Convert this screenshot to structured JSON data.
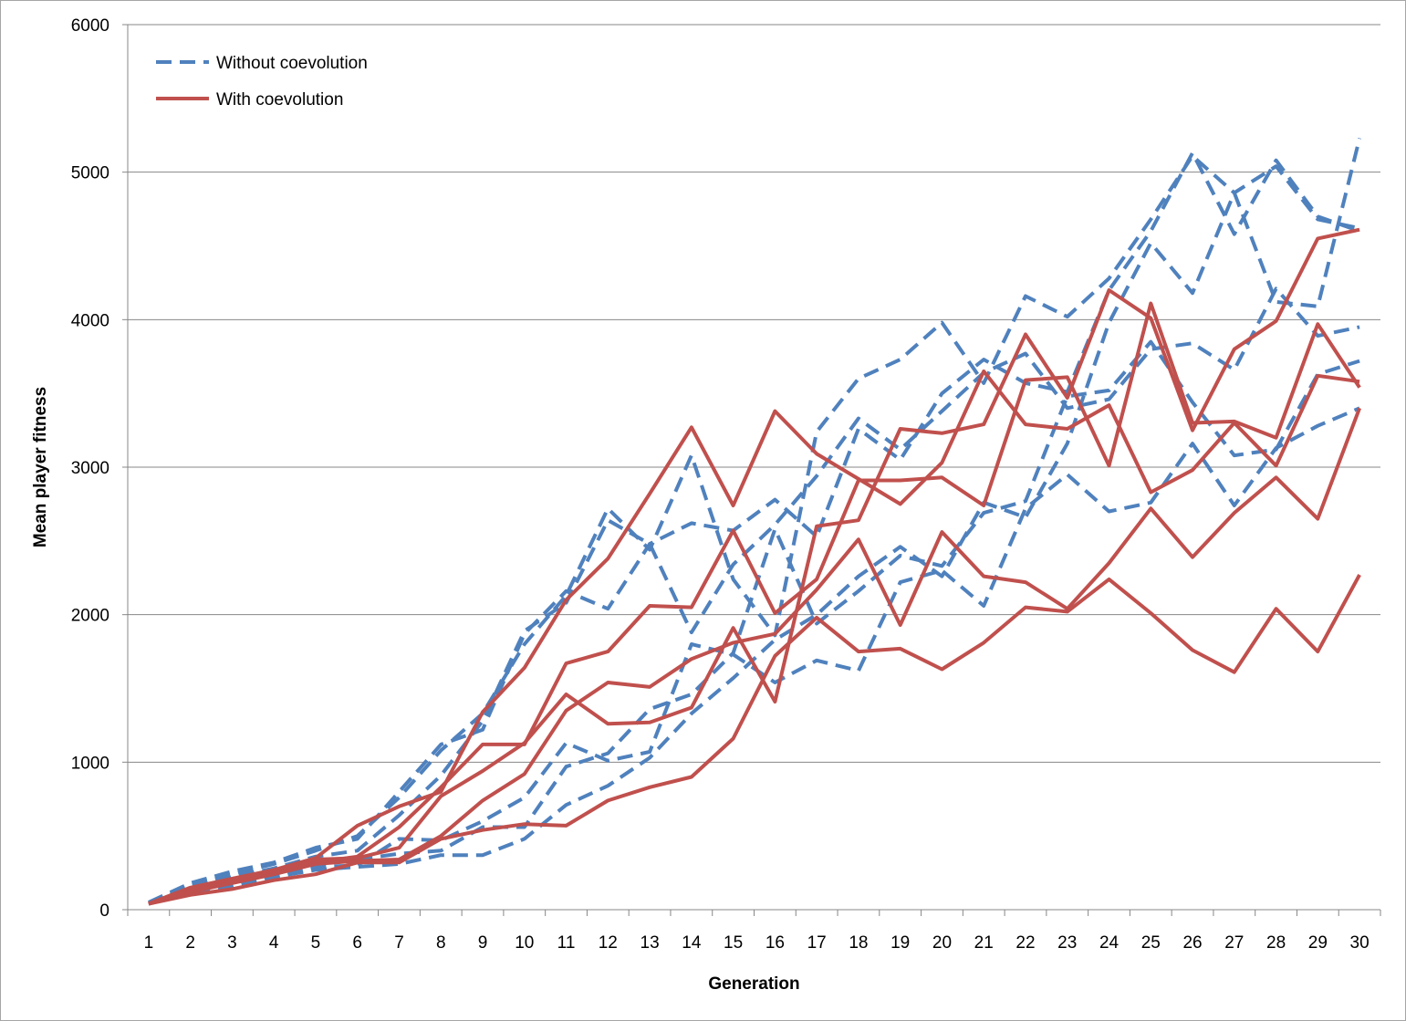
{
  "chart_data": {
    "type": "line",
    "title": "",
    "xlabel": "Generation",
    "ylabel": "Mean player fitness",
    "x": [
      1,
      2,
      3,
      4,
      5,
      6,
      7,
      8,
      9,
      10,
      11,
      12,
      13,
      14,
      15,
      16,
      17,
      18,
      19,
      20,
      21,
      22,
      23,
      24,
      25,
      26,
      27,
      28,
      29,
      30
    ],
    "xlim": [
      1,
      30
    ],
    "ylim": [
      0,
      6000
    ],
    "yticks": [
      0,
      1000,
      2000,
      3000,
      4000,
      5000,
      6000
    ],
    "grid": "horizontal",
    "legend_position": "top-left",
    "legend": [
      {
        "label": "Without coevolution",
        "style": "dashed",
        "color": "#4f81bd"
      },
      {
        "label": "With coevolution",
        "style": "solid",
        "color": "#c0504d"
      }
    ],
    "series": [
      {
        "group": "without",
        "values": [
          50,
          180,
          260,
          320,
          420,
          480,
          800,
          1120,
          1220,
          1870,
          2160,
          2040,
          2480,
          2620,
          2570,
          2780,
          2530,
          3260,
          3050,
          3500,
          3730,
          3570,
          3510,
          4200,
          4600,
          5130,
          4580,
          5080,
          4700,
          4600
        ]
      },
      {
        "group": "without",
        "values": [
          40,
          160,
          240,
          310,
          400,
          500,
          760,
          1080,
          1330,
          1800,
          2130,
          2720,
          2440,
          3080,
          2240,
          1860,
          3240,
          3600,
          3730,
          3980,
          3570,
          4160,
          4020,
          4280,
          4680,
          5110,
          4860,
          5040,
          4680,
          4620
        ]
      },
      {
        "group": "without",
        "values": [
          40,
          150,
          220,
          280,
          360,
          400,
          640,
          910,
          1280,
          1890,
          2080,
          2640,
          2480,
          1880,
          2340,
          2610,
          2940,
          3330,
          3120,
          3380,
          3640,
          3770,
          3400,
          3460,
          3800,
          3840,
          3660,
          4210,
          3890,
          3950
        ]
      },
      {
        "group": "without",
        "values": [
          40,
          120,
          180,
          230,
          290,
          300,
          480,
          470,
          600,
          760,
          1130,
          1010,
          1070,
          1800,
          1730,
          1540,
          1690,
          1620,
          2220,
          2300,
          2060,
          2720,
          2950,
          2700,
          2760,
          3160,
          2740,
          3130,
          3280,
          3400
        ]
      },
      {
        "group": "without",
        "values": [
          40,
          130,
          190,
          250,
          310,
          340,
          380,
          400,
          560,
          560,
          970,
          1060,
          1360,
          1460,
          1740,
          2580,
          1940,
          2160,
          2400,
          2330,
          2690,
          2770,
          3480,
          3520,
          3850,
          3440,
          3080,
          3120,
          3630,
          3720
        ]
      },
      {
        "group": "without",
        "values": [
          40,
          110,
          160,
          220,
          270,
          290,
          310,
          370,
          370,
          480,
          710,
          840,
          1030,
          1330,
          1570,
          1830,
          2000,
          2260,
          2460,
          2260,
          2760,
          2660,
          3160,
          3980,
          4520,
          4180,
          4860,
          4120,
          4090,
          5230
        ]
      },
      {
        "group": "with",
        "values": [
          40,
          150,
          210,
          270,
          350,
          570,
          700,
          800,
          1340,
          1640,
          2100,
          2380,
          2820,
          3270,
          2740,
          3380,
          3090,
          2920,
          2750,
          3030,
          3650,
          3290,
          3260,
          3420,
          2830,
          2980,
          3300,
          3010,
          3620,
          3580
        ]
      },
      {
        "group": "with",
        "values": [
          40,
          140,
          200,
          260,
          340,
          350,
          420,
          770,
          940,
          1130,
          1460,
          1260,
          1270,
          1370,
          1910,
          1410,
          2600,
          2640,
          3260,
          3230,
          3290,
          3900,
          3470,
          4200,
          4010,
          3250,
          3800,
          3990,
          4550,
          4610
        ]
      },
      {
        "group": "with",
        "values": [
          40,
          130,
          190,
          250,
          320,
          360,
          560,
          830,
          1120,
          1120,
          1670,
          1750,
          2060,
          2050,
          2570,
          2010,
          2240,
          2910,
          2910,
          2930,
          2740,
          3590,
          3610,
          3010,
          4110,
          3300,
          3310,
          3200,
          3970,
          3540
        ]
      },
      {
        "group": "with",
        "values": [
          40,
          120,
          180,
          240,
          310,
          330,
          340,
          500,
          740,
          920,
          1350,
          1540,
          1510,
          1700,
          1810,
          1870,
          2170,
          2510,
          1930,
          2560,
          2260,
          2220,
          2040,
          2350,
          2720,
          2390,
          2690,
          2930,
          2650,
          3400
        ]
      },
      {
        "group": "with",
        "values": [
          40,
          100,
          140,
          200,
          240,
          320,
          320,
          480,
          540,
          580,
          570,
          740,
          830,
          900,
          1160,
          1720,
          1980,
          1750,
          1770,
          1630,
          1810,
          2050,
          2020,
          2240,
          2010,
          1760,
          1610,
          2040,
          1750,
          2270
        ]
      }
    ]
  }
}
